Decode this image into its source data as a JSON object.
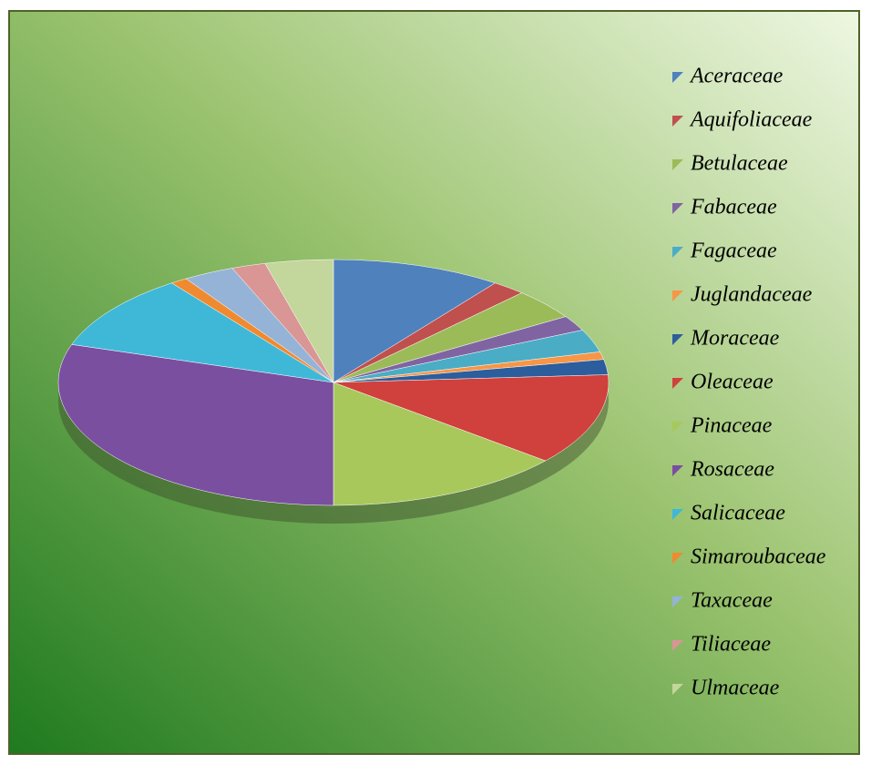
{
  "chart_data": {
    "type": "pie",
    "categories": [
      "Aceraceae",
      "Aquifoliaceae",
      "Betulaceae",
      "Fabaceae",
      "Fagaceae",
      "Juglandaceae",
      "Moraceae",
      "Oleaceae",
      "Pinaceae",
      "Rosaceae",
      "Salicaceae",
      "Simaroubaceae",
      "Taxaceae",
      "Tiliaceae",
      "Ulmaceae"
    ],
    "values": [
      10,
      2,
      4,
      2,
      3,
      1,
      2,
      12,
      14,
      30,
      10,
      1,
      3,
      2,
      4
    ],
    "colors": [
      "#4f81bd",
      "#c0504d",
      "#9bbb59",
      "#8064a2",
      "#4bacc6",
      "#f79646",
      "#2c5d9c",
      "#d0403c",
      "#a8c85c",
      "#7a4fa0",
      "#3fb8d8",
      "#f08a30",
      "#95b3d7",
      "#d99694",
      "#c3d69b"
    ],
    "legend": "right"
  }
}
